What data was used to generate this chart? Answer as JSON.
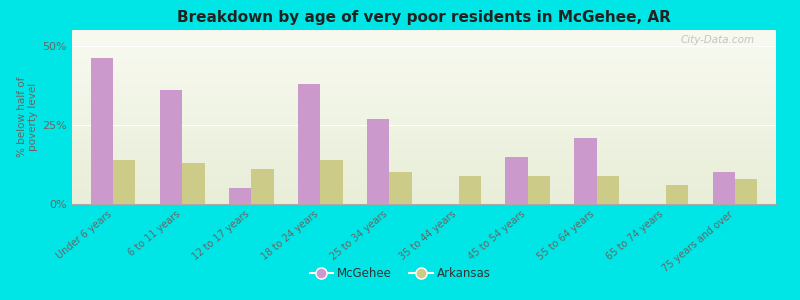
{
  "title": "Breakdown by age of very poor residents in McGehee, AR",
  "ylabel": "% below half of\npoverty level",
  "categories": [
    "Under 6 years",
    "6 to 11 years",
    "12 to 17 years",
    "18 to 24 years",
    "25 to 34 years",
    "35 to 44 years",
    "45 to 54 years",
    "55 to 64 years",
    "65 to 74 years",
    "75 years and over"
  ],
  "mcgehee_values": [
    46,
    36,
    5,
    38,
    27,
    0,
    15,
    21,
    0,
    10
  ],
  "arkansas_values": [
    14,
    13,
    11,
    14,
    10,
    9,
    9,
    9,
    6,
    8
  ],
  "mcgehee_color": "#cc99cc",
  "arkansas_color": "#cccc88",
  "background_color": "#00e5e5",
  "grad_top_color": "#e8eed8",
  "grad_bottom_color": "#f8faf0",
  "ylim": [
    0,
    55
  ],
  "yticks": [
    0,
    25,
    50
  ],
  "ytick_labels": [
    "0%",
    "25%",
    "50%"
  ],
  "legend_mcgehee": "McGehee",
  "legend_arkansas": "Arkansas",
  "watermark": "City-Data.com",
  "bar_width": 0.32
}
